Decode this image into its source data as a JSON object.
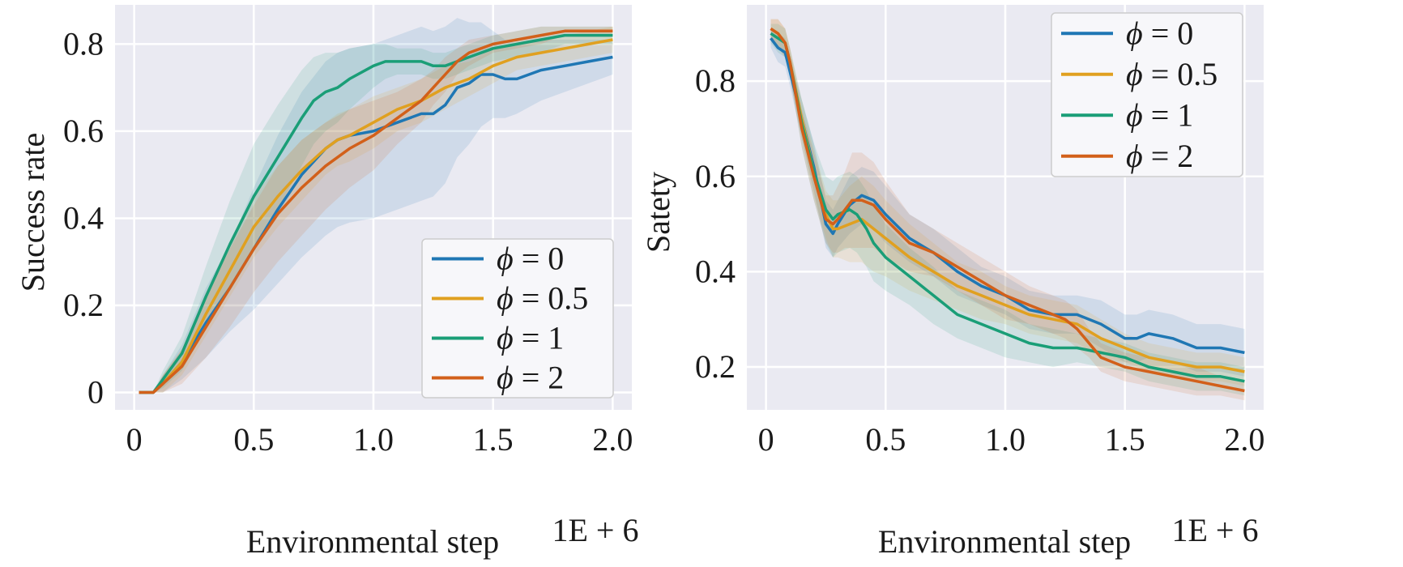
{
  "chart_data": [
    {
      "type": "line",
      "xlabel": "Environmental step",
      "x_multiplier": "1E + 6",
      "ylabel": "Success rate",
      "xlim": [
        -0.08,
        2.08
      ],
      "ylim": [
        -0.04,
        0.89
      ],
      "xticks": [
        {
          "v": 0,
          "label": "0"
        },
        {
          "v": 0.5,
          "label": "0.5"
        },
        {
          "v": 1.0,
          "label": "1.0"
        },
        {
          "v": 1.5,
          "label": "1.5"
        },
        {
          "v": 2.0,
          "label": "2.0"
        }
      ],
      "yticks": [
        {
          "v": 0,
          "label": "0"
        },
        {
          "v": 0.2,
          "label": "0.2"
        },
        {
          "v": 0.4,
          "label": "0.4"
        },
        {
          "v": 0.6,
          "label": "0.6"
        },
        {
          "v": 0.8,
          "label": "0.8"
        }
      ],
      "grid": true,
      "background": "#eaeaf2",
      "legend": {
        "placement": "lower-right",
        "items": [
          {
            "sym": "ϕ",
            "rest": " = 0"
          },
          {
            "sym": "ϕ",
            "rest": " = 0.5"
          },
          {
            "sym": "ϕ",
            "rest": " = 1"
          },
          {
            "sym": "ϕ",
            "rest": " = 2"
          }
        ]
      },
      "series": [
        {
          "name": "ϕ = 0",
          "color": "#1f77b4",
          "x": [
            0.02,
            0.08,
            0.12,
            0.2,
            0.3,
            0.4,
            0.5,
            0.6,
            0.7,
            0.8,
            0.85,
            0.9,
            1.0,
            1.1,
            1.2,
            1.25,
            1.3,
            1.35,
            1.4,
            1.45,
            1.5,
            1.55,
            1.6,
            1.7,
            1.8,
            1.9,
            2.0
          ],
          "y": [
            0.0,
            0.0,
            0.02,
            0.07,
            0.16,
            0.24,
            0.33,
            0.42,
            0.5,
            0.56,
            0.58,
            0.59,
            0.6,
            0.62,
            0.64,
            0.64,
            0.66,
            0.7,
            0.71,
            0.73,
            0.73,
            0.72,
            0.72,
            0.74,
            0.75,
            0.76,
            0.77
          ],
          "band": [
            0.0,
            0.0,
            0.02,
            0.04,
            0.08,
            0.1,
            0.14,
            0.17,
            0.19,
            0.2,
            0.2,
            0.2,
            0.2,
            0.2,
            0.2,
            0.19,
            0.18,
            0.16,
            0.14,
            0.12,
            0.1,
            0.09,
            0.08,
            0.07,
            0.06,
            0.05,
            0.04
          ]
        },
        {
          "name": "ϕ = 0.5",
          "color": "#e0a020",
          "x": [
            0.02,
            0.08,
            0.12,
            0.2,
            0.3,
            0.4,
            0.5,
            0.6,
            0.7,
            0.8,
            0.85,
            0.9,
            1.0,
            1.1,
            1.2,
            1.3,
            1.4,
            1.5,
            1.6,
            1.7,
            1.8,
            1.9,
            2.0
          ],
          "y": [
            0.0,
            0.0,
            0.02,
            0.07,
            0.18,
            0.28,
            0.38,
            0.45,
            0.51,
            0.56,
            0.58,
            0.59,
            0.62,
            0.65,
            0.67,
            0.7,
            0.72,
            0.75,
            0.77,
            0.78,
            0.79,
            0.8,
            0.81
          ],
          "band": [
            0.0,
            0.0,
            0.02,
            0.03,
            0.05,
            0.06,
            0.07,
            0.07,
            0.07,
            0.06,
            0.06,
            0.06,
            0.06,
            0.05,
            0.05,
            0.05,
            0.04,
            0.04,
            0.03,
            0.03,
            0.03,
            0.03,
            0.03
          ]
        },
        {
          "name": "ϕ = 1",
          "color": "#1a9e77",
          "x": [
            0.02,
            0.08,
            0.12,
            0.2,
            0.3,
            0.4,
            0.5,
            0.6,
            0.7,
            0.75,
            0.8,
            0.85,
            0.9,
            1.0,
            1.05,
            1.1,
            1.15,
            1.2,
            1.25,
            1.3,
            1.4,
            1.5,
            1.6,
            1.7,
            1.8,
            1.9,
            2.0
          ],
          "y": [
            0.0,
            0.0,
            0.03,
            0.09,
            0.22,
            0.34,
            0.45,
            0.54,
            0.63,
            0.67,
            0.69,
            0.7,
            0.72,
            0.75,
            0.76,
            0.76,
            0.76,
            0.76,
            0.75,
            0.75,
            0.77,
            0.79,
            0.8,
            0.81,
            0.82,
            0.82,
            0.82
          ],
          "band": [
            0.0,
            0.0,
            0.02,
            0.04,
            0.07,
            0.1,
            0.12,
            0.12,
            0.11,
            0.1,
            0.09,
            0.08,
            0.07,
            0.05,
            0.04,
            0.03,
            0.03,
            0.03,
            0.03,
            0.03,
            0.03,
            0.03,
            0.03,
            0.03,
            0.02,
            0.02,
            0.02
          ]
        },
        {
          "name": "ϕ = 2",
          "color": "#d2601a",
          "x": [
            0.02,
            0.08,
            0.12,
            0.2,
            0.3,
            0.4,
            0.5,
            0.6,
            0.7,
            0.8,
            0.9,
            1.0,
            1.1,
            1.2,
            1.25,
            1.3,
            1.35,
            1.4,
            1.5,
            1.6,
            1.7,
            1.8,
            1.9,
            2.0
          ],
          "y": [
            0.0,
            0.0,
            0.02,
            0.06,
            0.15,
            0.24,
            0.33,
            0.41,
            0.47,
            0.52,
            0.56,
            0.59,
            0.63,
            0.67,
            0.7,
            0.73,
            0.76,
            0.78,
            0.8,
            0.81,
            0.82,
            0.83,
            0.83,
            0.83
          ],
          "band": [
            0.0,
            0.0,
            0.02,
            0.04,
            0.07,
            0.09,
            0.1,
            0.11,
            0.11,
            0.1,
            0.09,
            0.08,
            0.06,
            0.05,
            0.04,
            0.04,
            0.03,
            0.03,
            0.02,
            0.02,
            0.02,
            0.01,
            0.01,
            0.01
          ]
        }
      ]
    },
    {
      "type": "line",
      "xlabel": "Environmental step",
      "x_multiplier": "1E + 6",
      "ylabel": "Satety",
      "xlim": [
        -0.08,
        2.08
      ],
      "ylim": [
        0.11,
        0.96
      ],
      "xticks": [
        {
          "v": 0,
          "label": "0"
        },
        {
          "v": 0.5,
          "label": "0.5"
        },
        {
          "v": 1.0,
          "label": "1.0"
        },
        {
          "v": 1.5,
          "label": "1.5"
        },
        {
          "v": 2.0,
          "label": "2.0"
        }
      ],
      "yticks": [
        {
          "v": 0.2,
          "label": "0.2"
        },
        {
          "v": 0.4,
          "label": "0.4"
        },
        {
          "v": 0.6,
          "label": "0.6"
        },
        {
          "v": 0.8,
          "label": "0.8"
        }
      ],
      "grid": true,
      "background": "#eaeaf2",
      "legend": {
        "placement": "upper-right",
        "items": [
          {
            "sym": "ϕ",
            "rest": " = 0"
          },
          {
            "sym": "ϕ",
            "rest": " = 0.5"
          },
          {
            "sym": "ϕ",
            "rest": " = 1"
          },
          {
            "sym": "ϕ",
            "rest": " = 2"
          }
        ]
      },
      "series": [
        {
          "name": "ϕ = 0",
          "color": "#1f77b4",
          "x": [
            0.02,
            0.05,
            0.08,
            0.1,
            0.15,
            0.2,
            0.25,
            0.28,
            0.3,
            0.35,
            0.4,
            0.45,
            0.5,
            0.6,
            0.7,
            0.8,
            0.9,
            1.0,
            1.1,
            1.2,
            1.3,
            1.4,
            1.5,
            1.55,
            1.6,
            1.7,
            1.8,
            1.9,
            2.0
          ],
          "y": [
            0.89,
            0.87,
            0.86,
            0.82,
            0.72,
            0.62,
            0.5,
            0.48,
            0.5,
            0.54,
            0.56,
            0.55,
            0.52,
            0.47,
            0.44,
            0.4,
            0.37,
            0.35,
            0.32,
            0.31,
            0.31,
            0.29,
            0.26,
            0.26,
            0.27,
            0.26,
            0.24,
            0.24,
            0.23
          ],
          "band": [
            0.02,
            0.03,
            0.03,
            0.03,
            0.04,
            0.05,
            0.05,
            0.05,
            0.05,
            0.06,
            0.06,
            0.06,
            0.06,
            0.05,
            0.05,
            0.05,
            0.04,
            0.04,
            0.04,
            0.04,
            0.04,
            0.05,
            0.05,
            0.05,
            0.05,
            0.05,
            0.05,
            0.05,
            0.05
          ]
        },
        {
          "name": "ϕ = 0.5",
          "color": "#e0a020",
          "x": [
            0.02,
            0.05,
            0.08,
            0.1,
            0.15,
            0.2,
            0.25,
            0.28,
            0.3,
            0.35,
            0.4,
            0.45,
            0.5,
            0.6,
            0.7,
            0.8,
            0.9,
            1.0,
            1.1,
            1.2,
            1.3,
            1.4,
            1.5,
            1.6,
            1.7,
            1.8,
            1.9,
            2.0
          ],
          "y": [
            0.91,
            0.9,
            0.88,
            0.84,
            0.72,
            0.61,
            0.52,
            0.49,
            0.49,
            0.5,
            0.51,
            0.49,
            0.47,
            0.43,
            0.4,
            0.37,
            0.35,
            0.33,
            0.31,
            0.3,
            0.29,
            0.26,
            0.24,
            0.22,
            0.21,
            0.2,
            0.2,
            0.19
          ],
          "band": [
            0.02,
            0.03,
            0.03,
            0.03,
            0.04,
            0.05,
            0.05,
            0.06,
            0.06,
            0.08,
            0.09,
            0.09,
            0.08,
            0.07,
            0.06,
            0.05,
            0.05,
            0.04,
            0.04,
            0.04,
            0.04,
            0.04,
            0.03,
            0.03,
            0.03,
            0.03,
            0.03,
            0.03
          ]
        },
        {
          "name": "ϕ = 1",
          "color": "#1a9e77",
          "x": [
            0.02,
            0.05,
            0.08,
            0.1,
            0.15,
            0.2,
            0.25,
            0.28,
            0.3,
            0.35,
            0.38,
            0.42,
            0.45,
            0.5,
            0.6,
            0.7,
            0.8,
            0.9,
            1.0,
            1.1,
            1.2,
            1.3,
            1.4,
            1.5,
            1.6,
            1.7,
            1.8,
            1.9,
            2.0
          ],
          "y": [
            0.9,
            0.89,
            0.88,
            0.84,
            0.71,
            0.61,
            0.53,
            0.51,
            0.52,
            0.53,
            0.52,
            0.49,
            0.46,
            0.43,
            0.39,
            0.35,
            0.31,
            0.29,
            0.27,
            0.25,
            0.24,
            0.24,
            0.23,
            0.22,
            0.2,
            0.19,
            0.18,
            0.18,
            0.17
          ],
          "band": [
            0.02,
            0.03,
            0.03,
            0.03,
            0.05,
            0.06,
            0.07,
            0.08,
            0.08,
            0.08,
            0.08,
            0.08,
            0.08,
            0.07,
            0.06,
            0.06,
            0.05,
            0.05,
            0.05,
            0.04,
            0.04,
            0.03,
            0.03,
            0.03,
            0.03,
            0.03,
            0.03,
            0.03,
            0.03
          ]
        },
        {
          "name": "ϕ = 2",
          "color": "#d2601a",
          "x": [
            0.02,
            0.05,
            0.08,
            0.1,
            0.15,
            0.2,
            0.25,
            0.28,
            0.3,
            0.33,
            0.36,
            0.4,
            0.45,
            0.5,
            0.6,
            0.7,
            0.8,
            0.9,
            1.0,
            1.1,
            1.2,
            1.25,
            1.3,
            1.35,
            1.4,
            1.5,
            1.6,
            1.7,
            1.8,
            1.9,
            2.0
          ],
          "y": [
            0.91,
            0.9,
            0.88,
            0.84,
            0.7,
            0.6,
            0.51,
            0.5,
            0.51,
            0.53,
            0.55,
            0.55,
            0.54,
            0.51,
            0.46,
            0.44,
            0.41,
            0.38,
            0.35,
            0.33,
            0.31,
            0.3,
            0.28,
            0.25,
            0.22,
            0.2,
            0.19,
            0.18,
            0.17,
            0.16,
            0.15
          ],
          "band": [
            0.02,
            0.03,
            0.03,
            0.03,
            0.04,
            0.05,
            0.05,
            0.06,
            0.07,
            0.08,
            0.1,
            0.1,
            0.09,
            0.08,
            0.06,
            0.05,
            0.05,
            0.05,
            0.05,
            0.04,
            0.04,
            0.04,
            0.04,
            0.03,
            0.03,
            0.03,
            0.03,
            0.03,
            0.03,
            0.02,
            0.02
          ]
        }
      ]
    }
  ]
}
